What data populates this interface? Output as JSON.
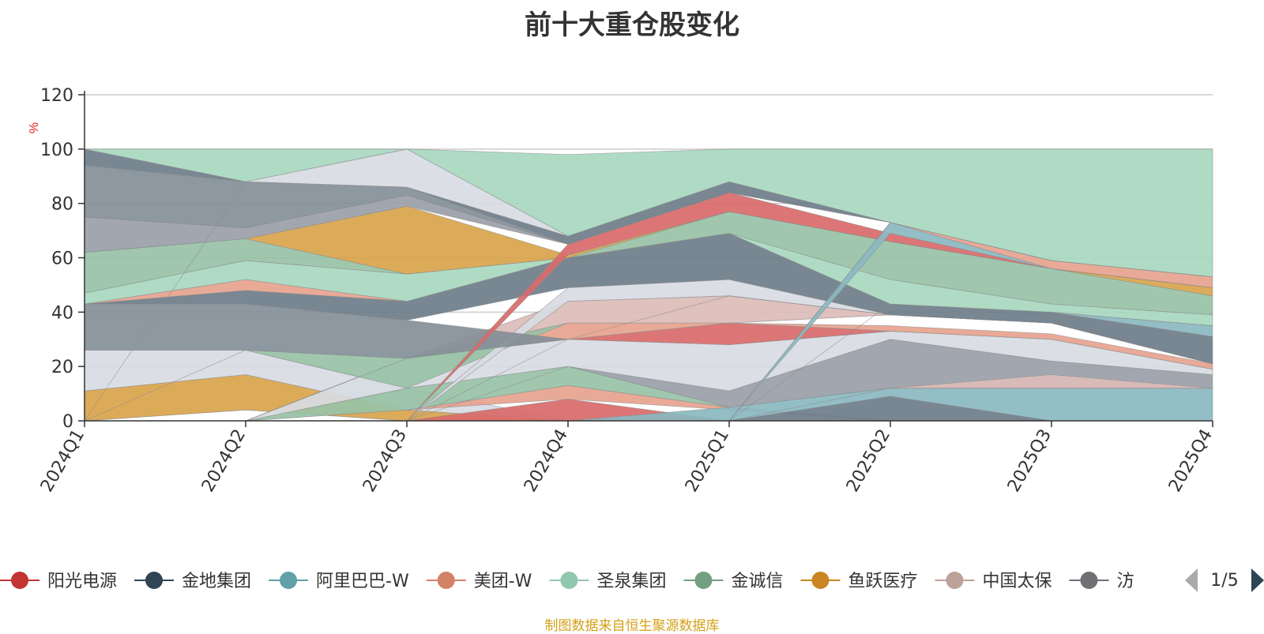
{
  "chart_data": {
    "type": "area",
    "title": "前十大重仓股变化",
    "ylabel": "%",
    "ylim": [
      0,
      120
    ],
    "yticks": [
      0,
      20,
      40,
      60,
      80,
      100,
      120
    ],
    "x": [
      "2024Q1",
      "2024Q2",
      "2024Q3",
      "2024Q4",
      "2025Q1",
      "2025Q2",
      "2025Q3",
      "2025Q4"
    ],
    "legend_position": "bottom",
    "legend_page": "1/5",
    "grid": true,
    "bands": [
      {
        "color": "#a8d8c0",
        "lower": [
          0,
          4,
          0,
          0,
          0,
          0,
          0,
          0
        ],
        "upper": [
          0,
          4,
          0,
          0,
          0,
          0,
          0,
          0
        ]
      },
      {
        "color": "#d9a44c",
        "lower": [
          0,
          4,
          0,
          0,
          0,
          0,
          0,
          0
        ],
        "upper": [
          11,
          17,
          4,
          0,
          0,
          0,
          0,
          0
        ]
      },
      {
        "color": "#d8dbe3",
        "lower": [
          11,
          17,
          4,
          0,
          0,
          0,
          0,
          0
        ],
        "upper": [
          26,
          26,
          12,
          0,
          0,
          0,
          0,
          0
        ]
      },
      {
        "color": "#d96a6a",
        "lower": [
          0,
          0,
          0,
          0,
          0,
          0,
          0,
          0
        ],
        "upper": [
          0,
          0,
          0,
          8,
          0,
          0,
          0,
          0
        ]
      },
      {
        "color": "#e6a38e",
        "lower": [
          0,
          0,
          4,
          8,
          4,
          0,
          0,
          0
        ],
        "upper": [
          0,
          0,
          4,
          13,
          5,
          0,
          0,
          0
        ]
      },
      {
        "color": "#98c2a6",
        "lower": [
          0,
          0,
          4,
          13,
          5,
          0,
          0,
          0
        ],
        "upper": [
          0,
          0,
          12,
          20,
          5,
          0,
          0,
          0
        ]
      },
      {
        "color": "#8ab9c1",
        "lower": [
          0,
          0,
          0,
          0,
          0,
          9,
          0,
          0
        ],
        "upper": [
          0,
          0,
          0,
          0,
          5,
          12,
          12,
          12
        ]
      },
      {
        "color": "#6e7d8a",
        "lower": [
          0,
          0,
          0,
          0,
          0,
          0,
          0,
          0
        ],
        "upper": [
          0,
          0,
          0,
          0,
          0,
          9,
          0,
          0
        ]
      },
      {
        "color": "#9aa0a8",
        "lower": [
          0,
          0,
          0,
          20,
          5,
          12,
          12,
          12
        ],
        "upper": [
          0,
          0,
          0,
          20,
          11,
          30,
          22,
          17
        ]
      },
      {
        "color": "#dcbcb8",
        "lower": [
          0,
          0,
          0,
          0,
          0,
          12,
          12,
          12
        ],
        "upper": [
          0,
          0,
          0,
          0,
          0,
          12,
          17,
          12
        ]
      },
      {
        "color": "#d8dbe3",
        "lower": [
          0,
          0,
          12,
          20,
          11,
          30,
          22,
          17
        ],
        "upper": [
          0,
          0,
          23,
          30,
          28,
          33,
          30,
          19
        ]
      },
      {
        "color": "#d96a6a",
        "lower": [
          0,
          0,
          0,
          30,
          28,
          33,
          30,
          19
        ],
        "upper": [
          0,
          0,
          0,
          30,
          36,
          33,
          30,
          19
        ]
      },
      {
        "color": "#e6a38e",
        "lower": [
          0,
          0,
          23,
          30,
          36,
          33,
          30,
          19
        ],
        "upper": [
          0,
          0,
          23,
          36,
          36,
          35,
          32,
          21
        ]
      },
      {
        "color": "#98c2a6",
        "lower": [
          0,
          26,
          12,
          36,
          36,
          39,
          36,
          21
        ],
        "upper": [
          0,
          26,
          23,
          36,
          36,
          39,
          36,
          21
        ]
      },
      {
        "color": "#dcbcb8",
        "lower": [
          0,
          0,
          23,
          36,
          36,
          39,
          36,
          21
        ],
        "upper": [
          0,
          0,
          23,
          44,
          46,
          39,
          36,
          21
        ]
      },
      {
        "color": "#d8dbe3",
        "lower": [
          0,
          0,
          0,
          44,
          46,
          39,
          36,
          21
        ],
        "upper": [
          0,
          0,
          0,
          49,
          52,
          39,
          36,
          21
        ]
      },
      {
        "color": "#848f98",
        "lower": [
          26,
          26,
          23,
          30,
          46,
          39,
          36,
          21
        ],
        "upper": [
          43,
          43,
          37,
          30,
          46,
          39,
          36,
          21
        ]
      },
      {
        "color": "#6e7d8a",
        "lower": [
          43,
          43,
          37,
          49,
          52,
          39,
          36,
          21
        ],
        "upper": [
          43,
          48,
          44,
          60,
          69,
          43,
          40,
          31
        ]
      },
      {
        "color": "#8ab9c1",
        "lower": [
          0,
          0,
          0,
          0,
          0,
          43,
          40,
          31
        ],
        "upper": [
          0,
          0,
          0,
          0,
          0,
          43,
          40,
          35
        ]
      },
      {
        "color": "#e6a38e",
        "lower": [
          43,
          48,
          44,
          60,
          69,
          43,
          40,
          35
        ],
        "upper": [
          43,
          52,
          44,
          60,
          69,
          43,
          40,
          35
        ]
      },
      {
        "color": "#a8d8c0",
        "lower": [
          43,
          52,
          44,
          60,
          69,
          43,
          40,
          35
        ],
        "upper": [
          47,
          59,
          54,
          60,
          69,
          52,
          43,
          39
        ]
      },
      {
        "color": "#98c2a6",
        "lower": [
          47,
          59,
          54,
          60,
          69,
          52,
          43,
          39
        ],
        "upper": [
          62,
          67,
          54,
          60,
          77,
          66,
          56,
          46
        ]
      },
      {
        "color": "#d9a44c",
        "lower": [
          62,
          67,
          54,
          60,
          77,
          66,
          56,
          46
        ],
        "upper": [
          62,
          67,
          79,
          61,
          77,
          66,
          56,
          49
        ]
      },
      {
        "color": "#d96a6a",
        "lower": [
          0,
          0,
          0,
          61,
          77,
          66,
          56,
          49
        ],
        "upper": [
          0,
          0,
          0,
          65,
          84,
          69,
          56,
          49
        ]
      },
      {
        "color": "#8ab9c1",
        "lower": [
          0,
          0,
          0,
          0,
          0,
          69,
          56,
          49
        ],
        "upper": [
          0,
          0,
          0,
          0,
          0,
          73,
          56,
          49
        ]
      },
      {
        "color": "#e6a38e",
        "lower": [
          0,
          0,
          0,
          0,
          0,
          73,
          56,
          49
        ],
        "upper": [
          0,
          0,
          0,
          0,
          0,
          73,
          59,
          53
        ]
      },
      {
        "color": "#9aa0a8",
        "lower": [
          62,
          67,
          79,
          65,
          84,
          73,
          59,
          53
        ],
        "upper": [
          75,
          71,
          83,
          65,
          84,
          73,
          59,
          53
        ]
      },
      {
        "color": "#848f98",
        "lower": [
          75,
          71,
          83,
          65,
          84,
          73,
          59,
          53
        ],
        "upper": [
          94,
          88,
          86,
          65,
          84,
          73,
          59,
          53
        ]
      },
      {
        "color": "#6e7d8a",
        "lower": [
          94,
          88,
          86,
          65,
          84,
          73,
          59,
          53
        ],
        "upper": [
          100,
          88,
          86,
          68,
          88,
          73,
          59,
          53
        ]
      },
      {
        "color": "#d8dbe3",
        "lower": [
          0,
          88,
          86,
          68,
          88,
          73,
          59,
          53
        ],
        "upper": [
          0,
          88,
          100,
          68,
          88,
          73,
          59,
          53
        ]
      },
      {
        "color": "#a8d8c0",
        "lower": [
          100,
          88,
          100,
          68,
          88,
          73,
          59,
          53
        ],
        "upper": [
          100,
          100,
          100,
          98,
          100,
          100,
          100,
          100
        ]
      }
    ],
    "legend": [
      {
        "name": "阳光电源",
        "color": "#c23531"
      },
      {
        "name": "金地集团",
        "color": "#2f4554"
      },
      {
        "name": "阿里巴巴-W",
        "color": "#61a0a8"
      },
      {
        "name": "美团-W",
        "color": "#d48265"
      },
      {
        "name": "圣泉集团",
        "color": "#91c7ae"
      },
      {
        "name": "金诚信",
        "color": "#749f83"
      },
      {
        "name": "鱼跃医疗",
        "color": "#ca8622"
      },
      {
        "name": "中国太保",
        "color": "#bda29a"
      },
      {
        "name": "汸",
        "color": "#6e7074"
      }
    ]
  },
  "source_note": "制图数据来自恒生聚源数据库",
  "icons": {
    "prev": "triangle-left-icon",
    "next": "triangle-right-icon"
  }
}
